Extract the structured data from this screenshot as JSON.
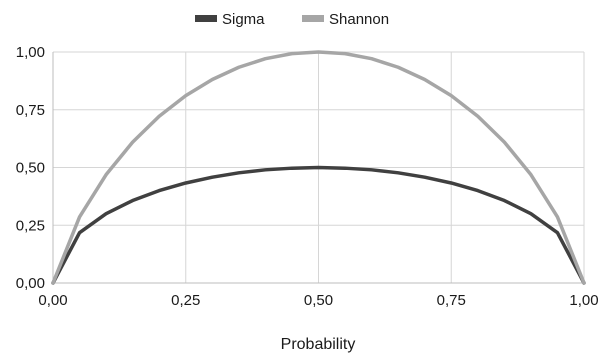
{
  "chart_data": {
    "type": "line",
    "title": "",
    "xlabel": "Probability",
    "ylabel": "",
    "xlim": [
      0,
      1
    ],
    "ylim": [
      0,
      1
    ],
    "grid": true,
    "legend_position": "top-center",
    "x_ticks": [
      "0,00",
      "0,25",
      "0,50",
      "0,75",
      "1,00"
    ],
    "y_ticks": [
      "0,00",
      "0,25",
      "0,50",
      "0,75",
      "1,00"
    ],
    "x": [
      0,
      0.05,
      0.1,
      0.15,
      0.2,
      0.25,
      0.3,
      0.35,
      0.4,
      0.45,
      0.5,
      0.55,
      0.6,
      0.65,
      0.7,
      0.75,
      0.8,
      0.85,
      0.9,
      0.95,
      1
    ],
    "series": [
      {
        "name": "Sigma",
        "color": "#404040",
        "values": [
          0,
          0.218,
          0.3,
          0.357,
          0.4,
          0.433,
          0.458,
          0.477,
          0.49,
          0.497,
          0.5,
          0.497,
          0.49,
          0.477,
          0.458,
          0.433,
          0.4,
          0.357,
          0.3,
          0.218,
          0
        ]
      },
      {
        "name": "Shannon",
        "color": "#a6a6a6",
        "values": [
          0,
          0.286,
          0.469,
          0.61,
          0.722,
          0.811,
          0.881,
          0.934,
          0.971,
          0.993,
          1,
          0.993,
          0.971,
          0.934,
          0.881,
          0.811,
          0.722,
          0.61,
          0.469,
          0.286,
          0
        ]
      }
    ]
  }
}
